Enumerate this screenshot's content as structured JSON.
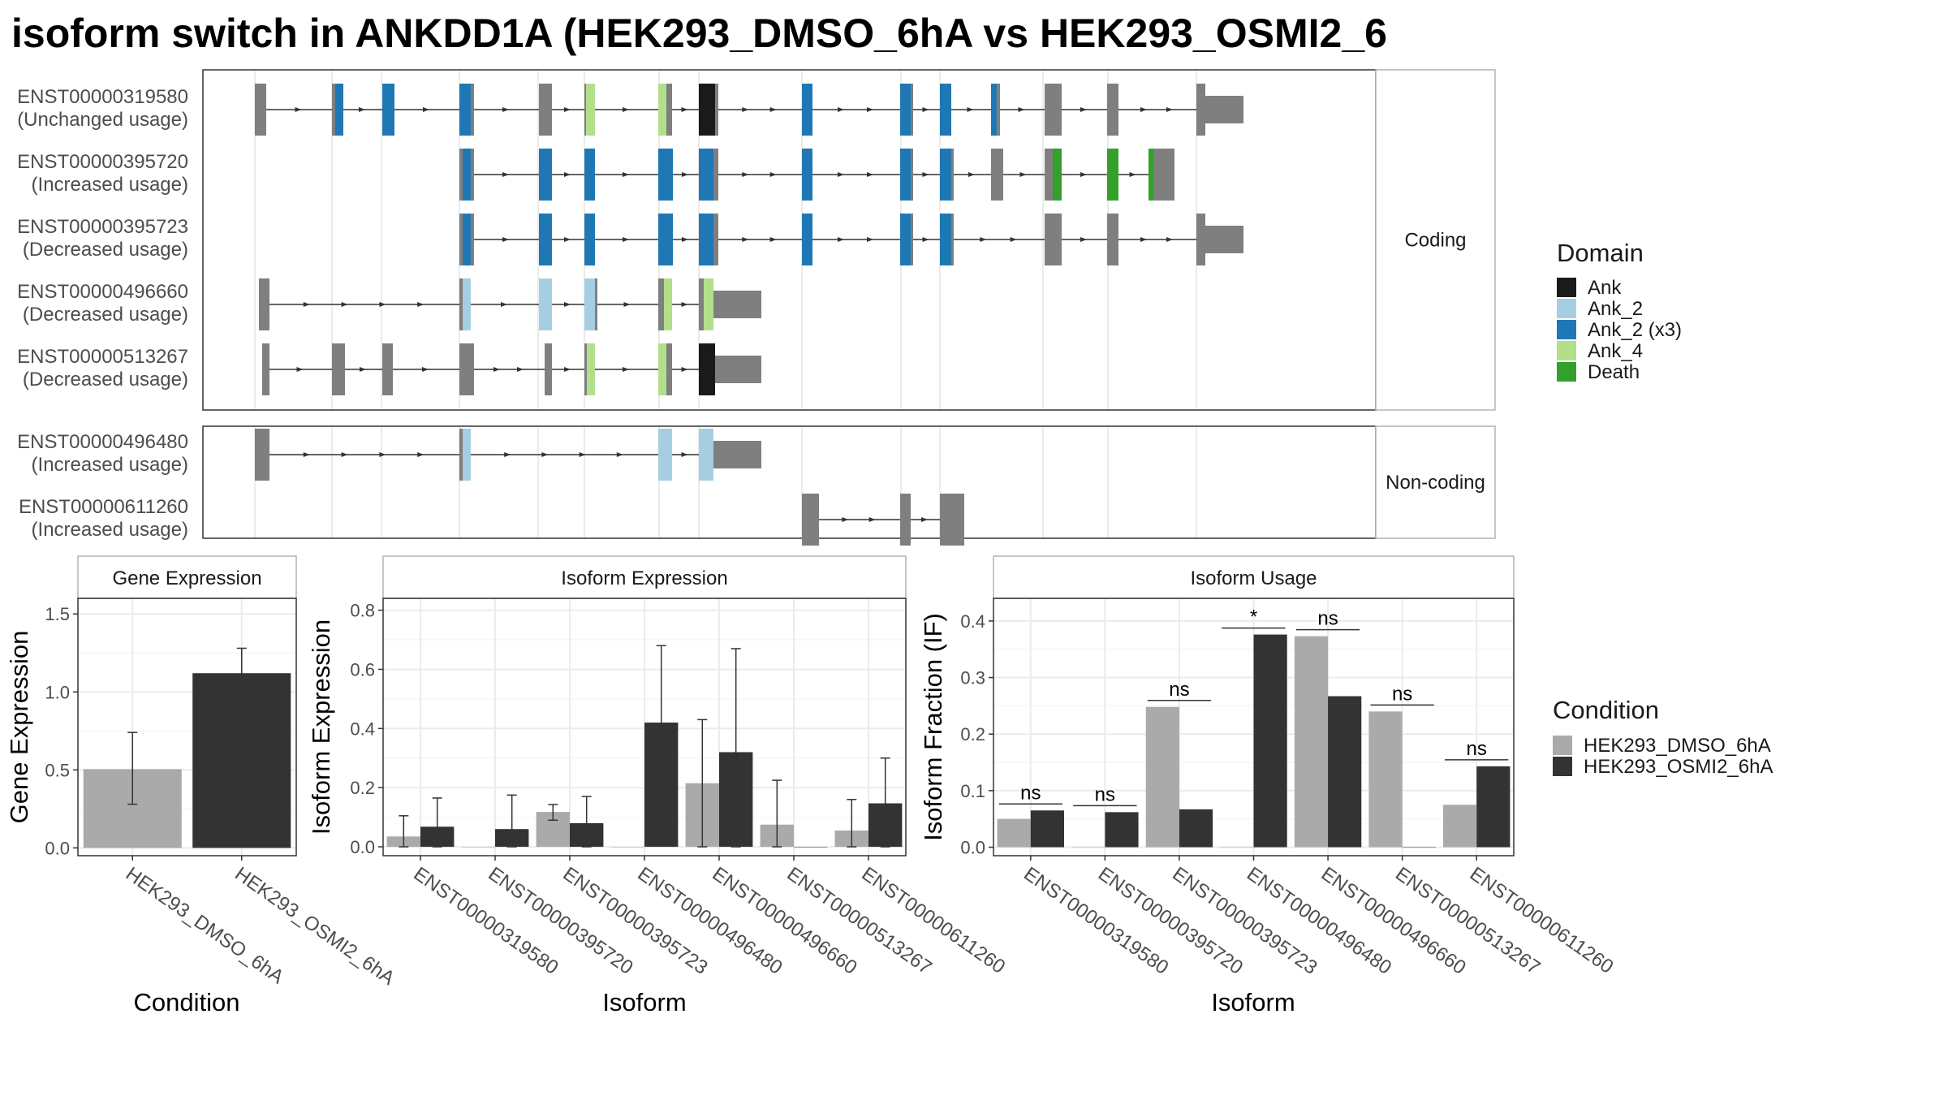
{
  "title": "isoform switch in ANKDD1A (HEK293_DMSO_6hA vs HEK293_OSMI2_6",
  "structure": {
    "facets": [
      {
        "label": "Coding",
        "isoforms": [
          {
            "id": "ENST00000319580",
            "usage": "(Unchanged usage)"
          },
          {
            "id": "ENST00000395720",
            "usage": "(Increased usage)"
          },
          {
            "id": "ENST00000395723",
            "usage": "(Decreased usage)"
          },
          {
            "id": "ENST00000496660",
            "usage": "(Decreased usage)"
          },
          {
            "id": "ENST00000513267",
            "usage": "(Decreased usage)"
          }
        ]
      },
      {
        "label": "Non-coding",
        "isoforms": [
          {
            "id": "ENST00000496480",
            "usage": "(Increased usage)"
          },
          {
            "id": "ENST00000611260",
            "usage": "(Increased usage)"
          }
        ]
      }
    ],
    "exons": [
      [
        [
          0,
          10,
          "gray"
        ],
        [
          10,
          14,
          "gray"
        ],
        [
          95,
          99,
          "gray"
        ],
        [
          99,
          109,
          "Ank_2 (x3)"
        ],
        [
          157,
          172,
          "Ank_2 (x3)"
        ],
        [
          252,
          266,
          "Ank_2 (x3)"
        ],
        [
          266,
          270,
          "gray"
        ],
        [
          350,
          366,
          "gray"
        ],
        [
          406,
          408,
          "gray"
        ],
        [
          408,
          419,
          "Ank_4"
        ],
        [
          497,
          507,
          "Ank_4"
        ],
        [
          507,
          514,
          "gray"
        ],
        [
          547,
          567,
          "Ank"
        ],
        [
          567,
          571,
          "gray"
        ],
        [
          674,
          687,
          "Ank_2 (x3)"
        ],
        [
          795,
          808,
          "Ank_2 (x3)"
        ],
        [
          808,
          811,
          "gray"
        ],
        [
          844,
          858,
          "Ank_2 (x3)"
        ],
        [
          907,
          914,
          "Ank_2 (x3)"
        ],
        [
          914,
          918,
          "gray"
        ],
        [
          973,
          994,
          "gray"
        ],
        [
          1050,
          1064,
          "gray"
        ],
        [
          1160,
          1171,
          "gray"
        ],
        [
          1171,
          1218,
          "gray"
        ]
      ],
      [
        [
          252,
          256,
          "gray"
        ],
        [
          256,
          266,
          "Ank_2 (x3)"
        ],
        [
          266,
          270,
          "gray"
        ],
        [
          350,
          366,
          "Ank_2 (x3)"
        ],
        [
          406,
          419,
          "Ank_2 (x3)"
        ],
        [
          497,
          515,
          "Ank_2 (x3)"
        ],
        [
          547,
          565,
          "Ank_2 (x3)"
        ],
        [
          565,
          571,
          "gray"
        ],
        [
          674,
          687,
          "Ank_2 (x3)"
        ],
        [
          795,
          808,
          "Ank_2 (x3)"
        ],
        [
          808,
          811,
          "gray"
        ],
        [
          844,
          858,
          "Ank_2 (x3)"
        ],
        [
          858,
          861,
          "gray"
        ],
        [
          907,
          922,
          "gray"
        ],
        [
          973,
          983,
          "gray"
        ],
        [
          983,
          994,
          "Death"
        ],
        [
          1050,
          1064,
          "Death"
        ],
        [
          1101,
          1107,
          "Death"
        ],
        [
          1107,
          1133,
          "gray"
        ]
      ],
      [
        [
          252,
          256,
          "gray"
        ],
        [
          256,
          266,
          "Ank_2 (x3)"
        ],
        [
          266,
          270,
          "gray"
        ],
        [
          350,
          366,
          "Ank_2 (x3)"
        ],
        [
          406,
          419,
          "Ank_2 (x3)"
        ],
        [
          497,
          515,
          "Ank_2 (x3)"
        ],
        [
          547,
          565,
          "Ank_2 (x3)"
        ],
        [
          565,
          571,
          "gray"
        ],
        [
          674,
          687,
          "Ank_2 (x3)"
        ],
        [
          795,
          808,
          "Ank_2 (x3)"
        ],
        [
          808,
          811,
          "gray"
        ],
        [
          844,
          858,
          "Ank_2 (x3)"
        ],
        [
          858,
          861,
          "gray"
        ],
        [
          973,
          994,
          "gray"
        ],
        [
          1050,
          1064,
          "gray"
        ],
        [
          1160,
          1171,
          "gray"
        ],
        [
          1171,
          1218,
          "gray"
        ]
      ],
      [
        [
          5,
          18,
          "gray"
        ],
        [
          252,
          256,
          "gray"
        ],
        [
          256,
          266,
          "Ank_2"
        ],
        [
          350,
          366,
          "Ank_2"
        ],
        [
          406,
          419,
          "Ank_2"
        ],
        [
          419,
          422,
          "gray"
        ],
        [
          497,
          504,
          "gray"
        ],
        [
          504,
          514,
          "Ank_4"
        ],
        [
          547,
          553,
          "gray"
        ],
        [
          553,
          565,
          "Ank_4"
        ],
        [
          565,
          624,
          "gray"
        ]
      ],
      [
        [
          9,
          18,
          "gray"
        ],
        [
          95,
          111,
          "gray"
        ],
        [
          157,
          170,
          "gray"
        ],
        [
          252,
          270,
          "gray"
        ],
        [
          357,
          366,
          "gray"
        ],
        [
          406,
          409,
          "gray"
        ],
        [
          409,
          419,
          "Ank_4"
        ],
        [
          497,
          507,
          "Ank_4"
        ],
        [
          507,
          514,
          "gray"
        ],
        [
          547,
          567,
          "Ank"
        ],
        [
          567,
          624,
          "gray"
        ]
      ],
      [
        [
          0,
          18,
          "gray"
        ],
        [
          252,
          256,
          "gray"
        ],
        [
          256,
          266,
          "Ank_2"
        ],
        [
          497,
          514,
          "Ank_2"
        ],
        [
          547,
          565,
          "Ank_2"
        ],
        [
          565,
          624,
          "gray"
        ]
      ],
      [
        [
          674,
          695,
          "gray"
        ],
        [
          795,
          808,
          "gray"
        ],
        [
          844,
          874,
          "gray"
        ]
      ]
    ],
    "domain_legend": {
      "title": "Domain",
      "items": [
        {
          "label": "Ank",
          "color": "#1a1a1a"
        },
        {
          "label": "Ank_2",
          "color": "#a6cee3"
        },
        {
          "label": "Ank_2 (x3)",
          "color": "#1f78b4"
        },
        {
          "label": "Ank_4",
          "color": "#b2df8a"
        },
        {
          "label": "Death",
          "color": "#33a02c"
        }
      ]
    },
    "exon_gray": "#7f7f7f"
  },
  "chart_data": [
    {
      "type": "bar",
      "title": "Gene Expression",
      "xlabel": "Condition",
      "ylabel": "Gene Expression",
      "ylim": [
        -0.05,
        1.6
      ],
      "yticks": [
        0.0,
        0.5,
        1.0,
        1.5
      ],
      "categories": [
        "HEK293_DMSO_6hA",
        "HEK293_OSMI2_6hA"
      ],
      "values": [
        0.505,
        1.12
      ],
      "error_low": [
        0.28,
        0.97
      ],
      "error_high": [
        0.74,
        1.28
      ]
    },
    {
      "type": "bar",
      "title": "Isoform Expression",
      "xlabel": "Isoform",
      "ylabel": "Isoform Expression",
      "ylim": [
        -0.03,
        0.84
      ],
      "yticks": [
        0.0,
        0.2,
        0.4,
        0.6,
        0.8
      ],
      "categories": [
        "ENST00000319580",
        "ENST00000395720",
        "ENST00000395723",
        "ENST00000496480",
        "ENST00000496660",
        "ENST00000513267",
        "ENST00000611260"
      ],
      "series": [
        {
          "name": "HEK293_DMSO_6hA",
          "values": [
            0.035,
            0.0,
            0.118,
            0.0,
            0.215,
            0.075,
            0.055
          ],
          "error_low": [
            0.0,
            null,
            0.09,
            null,
            0.0,
            0.0,
            0.0
          ],
          "error_high": [
            0.105,
            null,
            0.143,
            null,
            0.43,
            0.225,
            0.16
          ]
        },
        {
          "name": "HEK293_OSMI2_6hA",
          "values": [
            0.068,
            0.06,
            0.08,
            0.42,
            0.32,
            0.0,
            0.147
          ],
          "error_low": [
            0.0,
            0.0,
            0.0,
            0.165,
            0.0,
            null,
            0.0
          ],
          "error_high": [
            0.165,
            0.175,
            0.17,
            0.68,
            0.67,
            null,
            0.3
          ]
        }
      ]
    },
    {
      "type": "bar",
      "title": "Isoform Usage",
      "xlabel": "Isoform",
      "ylabel": "Isoform Fraction (IF)",
      "ylim": [
        -0.015,
        0.44
      ],
      "yticks": [
        0.0,
        0.1,
        0.2,
        0.3,
        0.4
      ],
      "categories": [
        "ENST00000319580",
        "ENST00000395720",
        "ENST00000395723",
        "ENST00000496480",
        "ENST00000496660",
        "ENST00000513267",
        "ENST00000611260"
      ],
      "series": [
        {
          "name": "HEK293_DMSO_6hA",
          "values": [
            0.05,
            0.0,
            0.248,
            0.0,
            0.373,
            0.24,
            0.075
          ]
        },
        {
          "name": "HEK293_OSMI2_6hA",
          "values": [
            0.065,
            0.062,
            0.067,
            0.376,
            0.267,
            0.0,
            0.143
          ]
        }
      ],
      "significance": [
        "ns",
        "ns",
        "ns",
        "*",
        "ns",
        "ns",
        "ns"
      ]
    }
  ],
  "condition_legend": {
    "title": "Condition",
    "items": [
      {
        "label": "HEK293_DMSO_6hA",
        "color": "#aaaaaa"
      },
      {
        "label": "HEK293_OSMI2_6hA",
        "color": "#333333"
      }
    ]
  }
}
